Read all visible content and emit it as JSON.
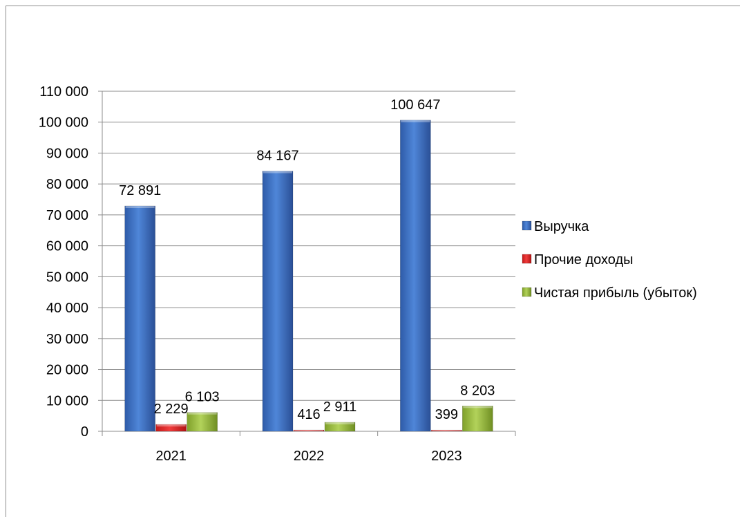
{
  "chart_data": {
    "type": "bar",
    "categories": [
      "2021",
      "2022",
      "2023"
    ],
    "series": [
      {
        "name": "Выручка",
        "values": [
          72891,
          84167,
          100647
        ],
        "labels": [
          "72 891",
          "84 167",
          "100 647"
        ],
        "color": "#3f74c8"
      },
      {
        "name": "Прочие доходы",
        "values": [
          2229,
          416,
          399
        ],
        "labels": [
          "2 229",
          "416",
          "399"
        ],
        "color": "#e52a2a"
      },
      {
        "name": "Чистая прибыль (убыток)",
        "values": [
          6103,
          2911,
          8203
        ],
        "labels": [
          "6 103",
          "2 911",
          "8 203"
        ],
        "color": "#9bbe3b"
      }
    ],
    "ylim": [
      0,
      110000
    ],
    "yticks": [
      0,
      10000,
      20000,
      30000,
      40000,
      50000,
      60000,
      70000,
      80000,
      90000,
      100000,
      110000
    ],
    "ytick_labels": [
      "0",
      "10 000",
      "20 000",
      "30 000",
      "40 000",
      "50 000",
      "60 000",
      "70 000",
      "80 000",
      "90 000",
      "100 000",
      "110 000"
    ],
    "grid": true,
    "legend_position": "right",
    "title": "",
    "xlabel": "",
    "ylabel": ""
  }
}
